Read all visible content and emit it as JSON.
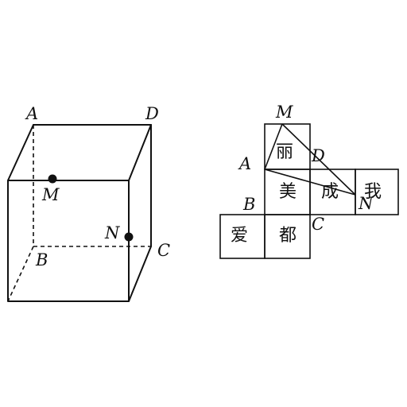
{
  "cube": {
    "labels": {
      "A": "A",
      "B": "B",
      "C": "C",
      "D": "D",
      "M": "M",
      "N": "N"
    }
  },
  "net": {
    "labels": {
      "A": "A",
      "B": "B",
      "C": "C",
      "D": "D",
      "M": "M",
      "N": "N"
    },
    "faces": {
      "li": "丽",
      "mei": "美",
      "cheng": "成",
      "wo": "我",
      "ai": "爱",
      "du": "都"
    }
  }
}
